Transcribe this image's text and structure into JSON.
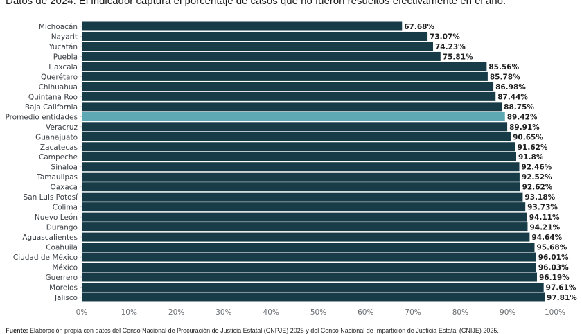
{
  "subtitle": "Datos de 2024. El indicador captura el porcentaje de casos que no fueron resueltos efectivamente en el año.",
  "footer": {
    "label": "Fuente:",
    "text": " Elaboración propia con datos del Censo Nacional de Procuración de Justicia Estatal (CNPJE) 2025 y del Censo Nacional de Impartición de Justicia Estatal (CNIJE) 2025."
  },
  "colors": {
    "bar": "#173b47",
    "highlight": "#5ea8b3"
  },
  "chart_data": {
    "type": "bar",
    "orientation": "horizontal",
    "title": "",
    "xlabel": "",
    "ylabel": "",
    "xlim": [
      0,
      100
    ],
    "x_ticks": [
      "0%",
      "10%",
      "20%",
      "30%",
      "40%",
      "50%",
      "60%",
      "70%",
      "80%",
      "90%",
      "100%"
    ],
    "grid": false,
    "highlight_category": "Promedio entidades",
    "categories": [
      "Michoacán",
      "Nayarit",
      "Yucatán",
      "Puebla",
      "Tlaxcala",
      "Querétaro",
      "Chihuahua",
      "Quintana Roo",
      "Baja California",
      "Promedio entidades",
      "Veracruz",
      "Guanajuato",
      "Zacatecas",
      "Campeche",
      "Sinaloa",
      "Tamaulipas",
      "Oaxaca",
      "San Luis Potosí",
      "Colima",
      "Nuevo León",
      "Durango",
      "Aguascalientes",
      "Coahuila",
      "Ciudad de México",
      "México",
      "Guerrero",
      "Morelos",
      "Jalisco"
    ],
    "values": [
      67.68,
      73.07,
      74.23,
      75.81,
      85.56,
      85.78,
      86.98,
      87.44,
      88.75,
      89.42,
      89.91,
      90.65,
      91.62,
      91.8,
      92.46,
      92.52,
      92.62,
      93.18,
      93.73,
      94.11,
      94.21,
      94.64,
      95.68,
      96.01,
      96.03,
      96.19,
      97.61,
      97.81
    ],
    "value_labels": [
      "67.68%",
      "73.07%",
      "74.23%",
      "75.81%",
      "85.56%",
      "85.78%",
      "86.98%",
      "87.44%",
      "88.75%",
      "89.42%",
      "89.91%",
      "90.65%",
      "91.62%",
      "91.8%",
      "92.46%",
      "92.52%",
      "92.62%",
      "93.18%",
      "93.73%",
      "94.11%",
      "94.21%",
      "94.64%",
      "95.68%",
      "96.01%",
      "96.03%",
      "96.19%",
      "97.61%",
      "97.81%"
    ]
  }
}
